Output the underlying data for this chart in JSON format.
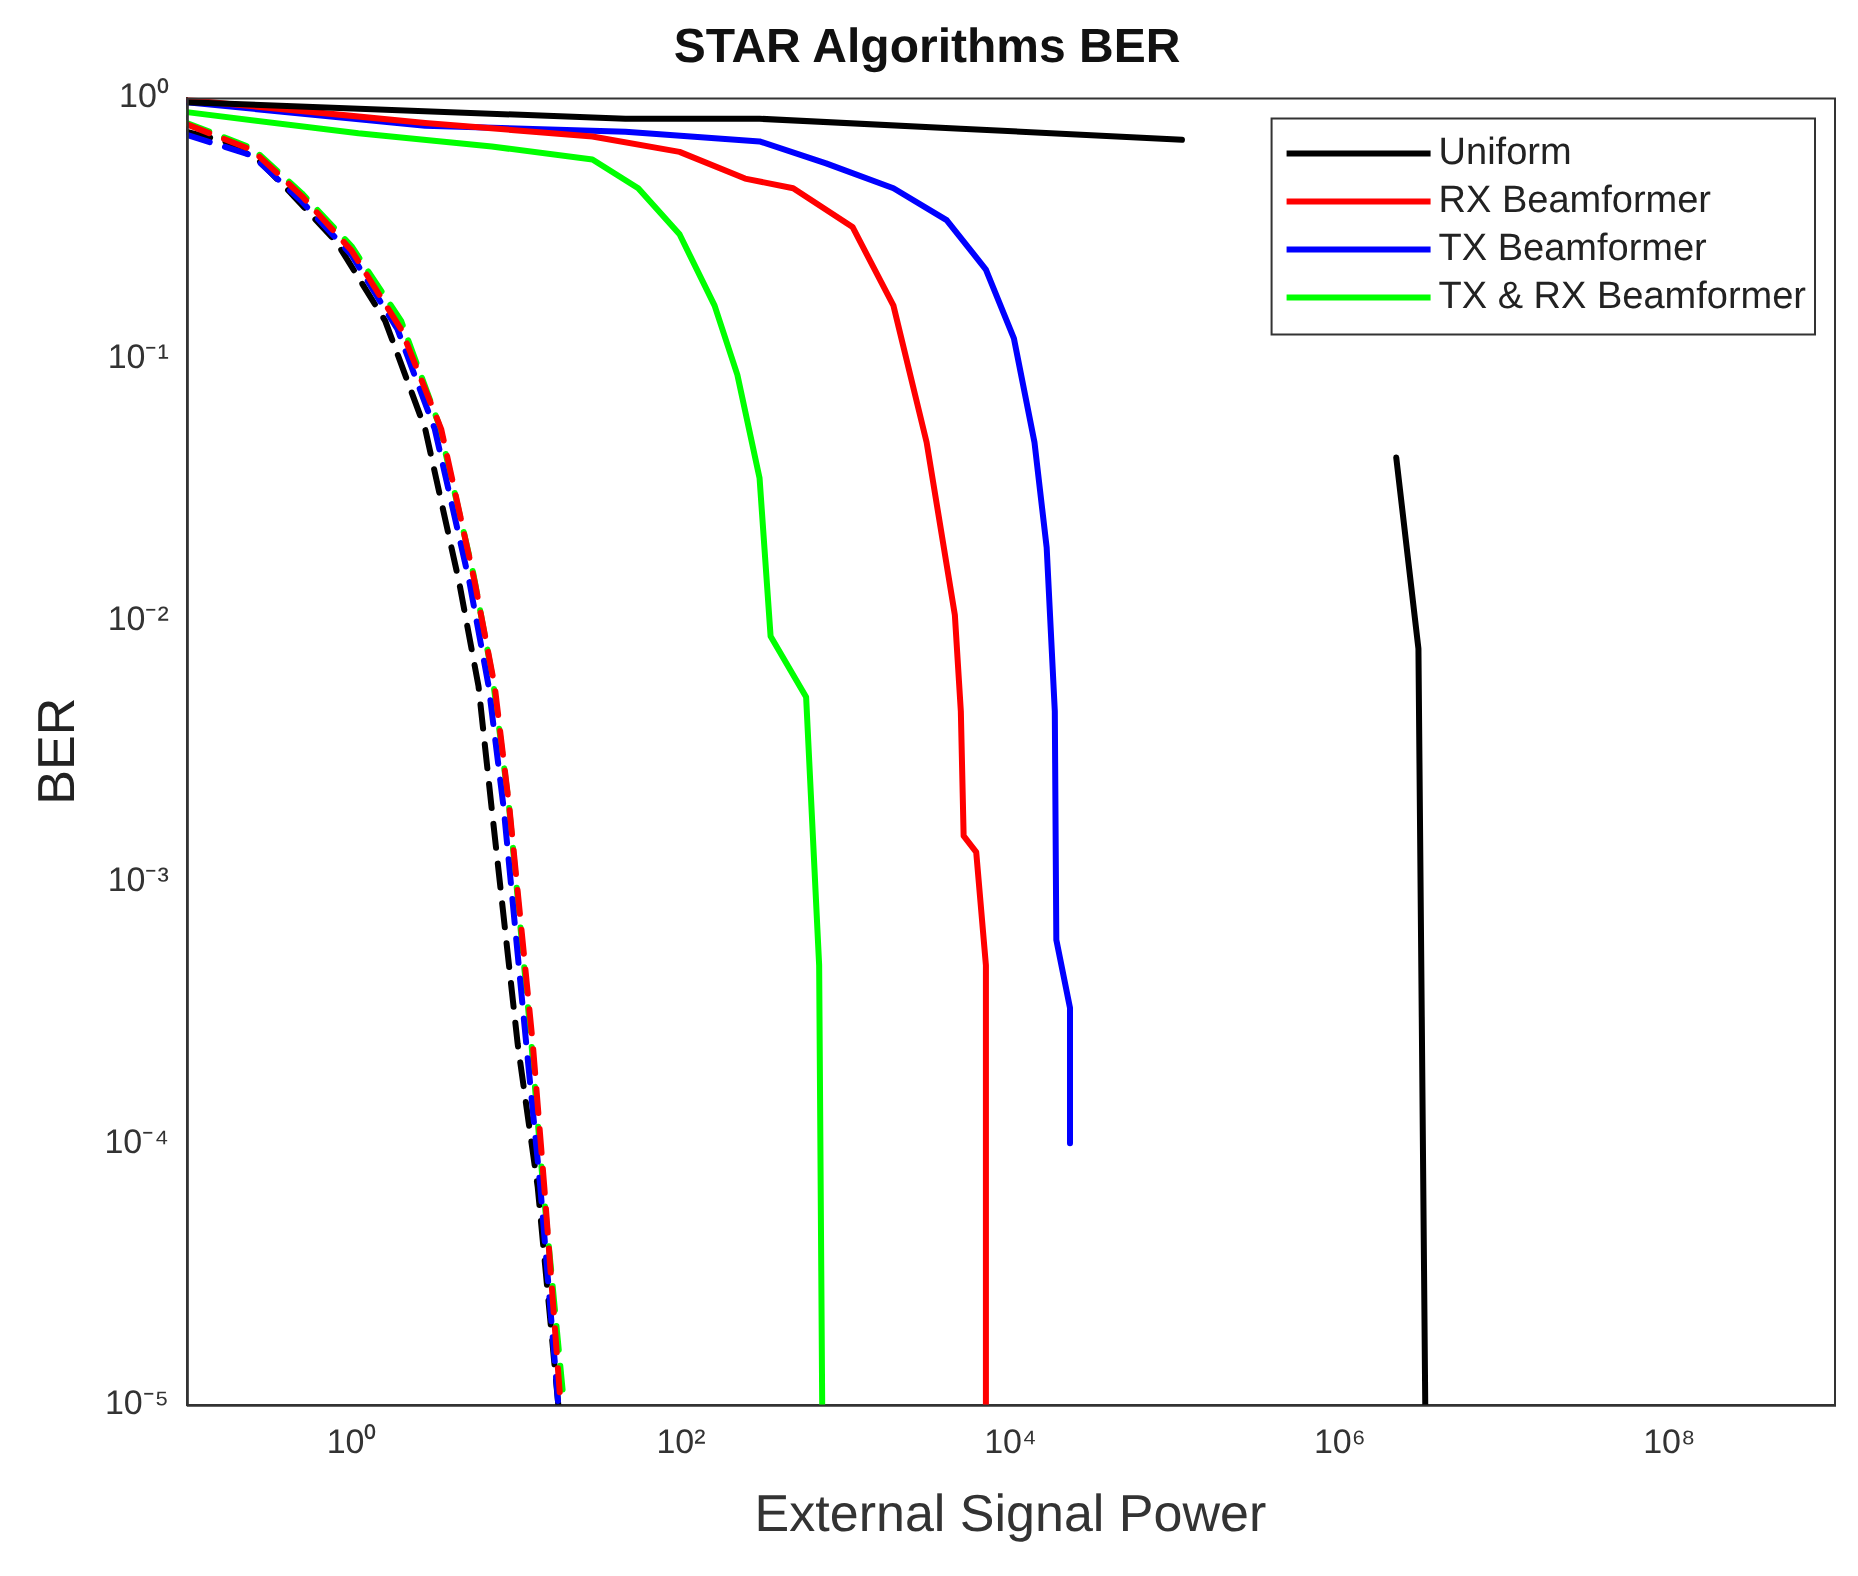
{
  "chart_data": {
    "type": "line",
    "title": "STAR Algorithms BER",
    "xlabel": "External Signal Power",
    "ylabel": "BER",
    "log": "xy",
    "legend": "top right",
    "marker": "none",
    "xlim": [
      0.1,
      1000000000
    ],
    "ylim": [
      1e-05,
      1
    ],
    "xticks": [
      {
        "value": 1,
        "label": "10⁰"
      },
      {
        "value": 100,
        "label": "10²"
      },
      {
        "value": 10000,
        "label": "10⁴"
      },
      {
        "value": 1000000,
        "label": "10⁶"
      },
      {
        "value": 100000000,
        "label": "10⁸"
      }
    ],
    "yticks": [
      {
        "value": 1e-05,
        "label": "10⁻⁵"
      },
      {
        "value": 0.0001,
        "label": "10⁻⁴"
      },
      {
        "value": 0.001,
        "label": "10⁻³"
      },
      {
        "value": 0.01,
        "label": "10⁻²"
      },
      {
        "value": 0.1,
        "label": "10⁻¹"
      },
      {
        "value": 1,
        "label": "10⁰"
      }
    ],
    "series": [
      {
        "name": "Uniform",
        "color": "#000000",
        "line_style": "solid",
        "x": [
          0.1,
          46,
          300,
          5000,
          110000,
          500000,
          2200000,
          3000000,
          3300000
        ],
        "values": [
          0.96,
          0.83,
          0.83,
          0.76,
          0.69,
          null,
          0.042,
          0.0078,
          1e-05
        ]
      },
      {
        "name": "RX Beamformer",
        "color": "#ff0000",
        "line_style": "solid",
        "x": [
          0.1,
          2.8,
          29,
          98,
          245,
          480,
          1100,
          1950,
          3100,
          4600,
          5000,
          5200,
          6200,
          7100,
          7100
        ],
        "values": [
          0.98,
          0.8,
          0.71,
          0.62,
          0.49,
          0.45,
          0.32,
          0.16,
          0.048,
          0.0105,
          0.0045,
          0.0015,
          0.0013,
          0.00048,
          1e-05
        ]
      },
      {
        "name": "TX Beamformer",
        "color": "#0000ff",
        "line_style": "solid",
        "x": [
          0.1,
          2.8,
          46,
          300,
          760,
          1950,
          4100,
          7100,
          10500,
          14000,
          16600,
          18600,
          19000,
          23000,
          23000
        ],
        "values": [
          0.96,
          0.78,
          0.74,
          0.68,
          0.56,
          0.45,
          0.34,
          0.22,
          0.12,
          0.048,
          0.019,
          0.0045,
          0.0006,
          0.00033,
          0.0001
        ]
      },
      {
        "name": "TX & RX Beamformer",
        "color": "#00ff00",
        "line_style": "solid",
        "x": [
          0.1,
          1.1,
          7.1,
          29,
          55,
          98,
          160,
          220,
          300,
          350,
          575,
          690,
          720
        ],
        "values": [
          0.88,
          0.73,
          0.65,
          0.58,
          0.45,
          0.3,
          0.16,
          0.087,
          0.035,
          0.0087,
          0.0051,
          0.00048,
          1e-05
        ]
      },
      {
        "color": "#ff0000",
        "line_style": "dashed",
        "x": [
          0.1,
          0.25,
          0.5,
          1,
          2,
          3.5,
          5.6,
          7.4,
          9.1,
          12.6,
          14.8,
          18.6
        ],
        "values": [
          0.79,
          0.63,
          0.42,
          0.26,
          0.13,
          0.054,
          0.014,
          0.0056,
          0.0019,
          0.00024,
          6.8e-05,
          1e-05
        ]
      },
      {
        "color": "#0000ff",
        "line_style": "dashed",
        "x": [
          0.1,
          0.25,
          0.5,
          1,
          1.9,
          3.2,
          5.2,
          6.8,
          8.4,
          11.5,
          14,
          18
        ],
        "values": [
          0.72,
          0.6,
          0.4,
          0.25,
          0.13,
          0.054,
          0.014,
          0.0056,
          0.0019,
          0.00024,
          6.8e-05,
          1e-05
        ]
      },
      {
        "color": "#00ff00",
        "line_style": "dashed",
        "x": [
          0.1,
          0.25,
          0.5,
          1,
          2,
          3.4,
          5.5,
          7.2,
          9,
          12.3,
          14.5,
          19.5
        ],
        "values": [
          0.8,
          0.64,
          0.43,
          0.27,
          0.14,
          0.056,
          0.015,
          0.006,
          0.002,
          0.00025,
          7e-05,
          1e-05
        ]
      },
      {
        "color": "#000000",
        "line_style": "dashed",
        "x": [
          0.1,
          0.17,
          0.27,
          0.43,
          0.81,
          1.6,
          2.8,
          4.5,
          5.9,
          7.1,
          10.2,
          13.5,
          18
        ],
        "values": [
          0.74,
          0.68,
          0.58,
          0.43,
          0.28,
          0.14,
          0.054,
          0.014,
          0.0056,
          0.0019,
          0.00024,
          6.8e-05,
          1e-05
        ]
      }
    ]
  }
}
